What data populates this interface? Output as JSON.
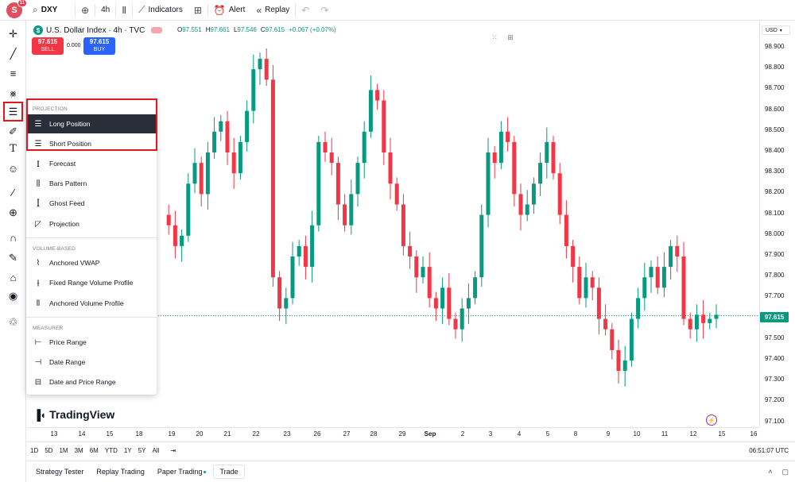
{
  "header": {
    "avatar_letter": "S",
    "notif_count": "11",
    "symbol": "DXY",
    "interval": "4h",
    "indicators_label": "Indicators",
    "alert_label": "Alert",
    "replay_label": "Replay"
  },
  "legend": {
    "title": "U.S. Dollar Index · 4h · TVC",
    "ohlc": [
      {
        "k": "O",
        "v": "97.551"
      },
      {
        "k": "H",
        "v": "97.661"
      },
      {
        "k": "L",
        "v": "97.546"
      },
      {
        "k": "C",
        "v": "97.615"
      },
      {
        "k": "",
        "v": "+0.067 (+0.07%)"
      }
    ],
    "sell_price": "97.615",
    "sell_label": "SELL",
    "buy_price": "97.615",
    "buy_label": "BUY",
    "spread": "0.000"
  },
  "price_axis": {
    "currency": "USD",
    "labels": [
      "98.900",
      "98.800",
      "98.700",
      "98.600",
      "98.500",
      "98.400",
      "98.300",
      "98.200",
      "98.100",
      "98.000",
      "97.900",
      "97.800",
      "97.700",
      "97.600",
      "97.500",
      "97.400",
      "97.300",
      "97.200",
      "97.100"
    ],
    "last_price": "97.615",
    "accent_up": "#089981",
    "accent_down": "#f23645"
  },
  "time_axis": {
    "labels": [
      "13",
      "14",
      "15",
      "18",
      "19",
      "20",
      "21",
      "22",
      "23",
      "26",
      "27",
      "28",
      "29",
      "Sep",
      "2",
      "3",
      "4",
      "5",
      "8",
      "9",
      "10",
      "11",
      "12",
      "15",
      "16"
    ]
  },
  "range_bar": {
    "ranges": [
      "1D",
      "5D",
      "1M",
      "3M",
      "6M",
      "YTD",
      "1Y",
      "5Y",
      "All"
    ],
    "clock": "06:51:07 UTC"
  },
  "bottom_tabs": [
    "Strategy Tester",
    "Replay Trading",
    "Paper Trading",
    "Trade"
  ],
  "brand": "TradingView",
  "menu": {
    "sections": [
      {
        "title": "PROJECTION",
        "items": [
          {
            "label": "Long Position",
            "icon": "long-position-icon",
            "highlighted": true
          },
          {
            "label": "Short Position",
            "icon": "short-position-icon"
          },
          {
            "label": "Forecast",
            "icon": "forecast-icon"
          },
          {
            "label": "Bars Pattern",
            "icon": "bars-pattern-icon"
          },
          {
            "label": "Ghost Feed",
            "icon": "ghost-feed-icon"
          },
          {
            "label": "Projection",
            "icon": "projection-icon"
          }
        ]
      },
      {
        "title": "VOLUME-BASED",
        "items": [
          {
            "label": "Anchored VWAP",
            "icon": "anchored-vwap-icon"
          },
          {
            "label": "Fixed Range Volume Profile",
            "icon": "fixed-range-volume-profile-icon"
          },
          {
            "label": "Anchored Volume Profile",
            "icon": "anchored-volume-profile-icon"
          }
        ]
      },
      {
        "title": "MEASURER",
        "items": [
          {
            "label": "Price Range",
            "icon": "price-range-icon"
          },
          {
            "label": "Date Range",
            "icon": "date-range-icon"
          },
          {
            "label": "Date and Price Range",
            "icon": "date-and-price-range-icon"
          }
        ]
      }
    ]
  }
}
